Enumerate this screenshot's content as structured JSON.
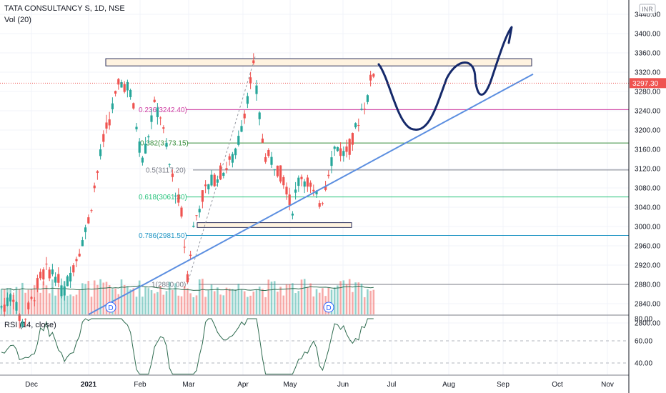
{
  "header": {
    "symbol_line": "TATA CONSULTANCY S, 1D, NSE",
    "volume_line": "Vol (20)",
    "currency": "INR"
  },
  "rsi_panel": {
    "label": "RSI (14, close)"
  },
  "colors": {
    "up": "#26a69a",
    "down": "#ef5350",
    "trendline": "#5b8ee0",
    "drawing": "#15296a",
    "fib_0236": "#ce3ba0",
    "fib_0382": "#388e3c",
    "fib_05": "#787b86",
    "fib_0618": "#24c27a",
    "fib_0786": "#2196c4",
    "fib_1": "#787b86",
    "rsi": "#2e6b4f",
    "current_price": "#ef5350"
  },
  "chart_data": [
    {
      "type": "candlestick",
      "price_axis": {
        "ticks": [
          "3440.00",
          "3400.00",
          "3360.00",
          "3320.00",
          "3280.00",
          "3240.00",
          "3200.00",
          "3160.00",
          "3120.00",
          "3080.00",
          "3040.00",
          "3000.00",
          "2960.00",
          "2920.00",
          "2880.00",
          "2840.00",
          "2800.00"
        ],
        "range": [
          2780,
          3450
        ]
      },
      "time_axis": {
        "labels": [
          "Dec",
          "2021",
          "Feb",
          "Mar",
          "Apr",
          "May",
          "Jun",
          "Jul",
          "Aug",
          "Sep",
          "Oct",
          "Nov"
        ]
      },
      "current_price": "3297.30",
      "fib_levels": [
        {
          "ratio": 0.236,
          "price": 3242.4,
          "label": "0.236(3242.40)"
        },
        {
          "ratio": 0.382,
          "price": 3173.15,
          "label": "0.382(3173.15)"
        },
        {
          "ratio": 0.5,
          "price": 3117.2,
          "label": "0.5(3117.20)"
        },
        {
          "ratio": 0.618,
          "price": 3061.3,
          "label": "0.618(3061.30)"
        },
        {
          "ratio": 0.786,
          "price": 2981.5,
          "label": "0.786(2981.50)"
        },
        {
          "ratio": 1,
          "price": 2880.0,
          "label": "1(2880.00)"
        }
      ],
      "resistance_zone": [
        3333,
        3348
      ],
      "support_zone": [
        2998,
        3008
      ],
      "dividend_markers": [
        "D",
        "D"
      ],
      "candles": [],
      "volume_ma_period": 20
    },
    {
      "type": "line",
      "name": "RSI (14, close)",
      "y_ticks": [
        "80.00",
        "60.00",
        "40.00"
      ],
      "range": [
        28,
        83
      ],
      "values": []
    }
  ]
}
